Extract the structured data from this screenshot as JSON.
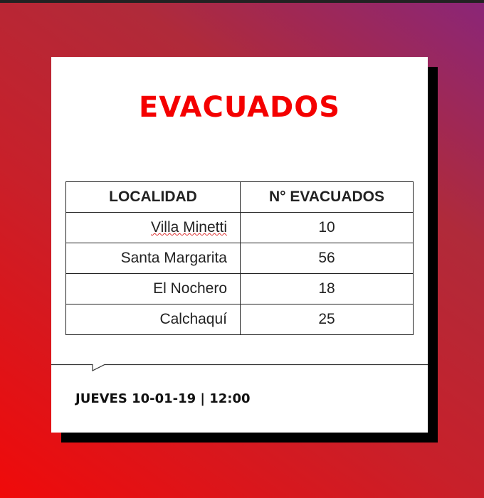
{
  "title": "EVACUADOS",
  "table": {
    "headers": [
      "LOCALIDAD",
      "N° EVACUADOS"
    ],
    "rows": [
      {
        "localidad": "Villa Minetti",
        "evacuados": "10"
      },
      {
        "localidad": "Santa Margarita",
        "evacuados": "56"
      },
      {
        "localidad": "El Nochero",
        "evacuados": "18"
      },
      {
        "localidad": "Calchaquí",
        "evacuados": "25"
      }
    ]
  },
  "footer": {
    "date": "JUEVES 10-01-19 | 12:00"
  },
  "colors": {
    "title": "#f40000",
    "background_start": "#f00a0a",
    "background_end": "#8a2678"
  }
}
